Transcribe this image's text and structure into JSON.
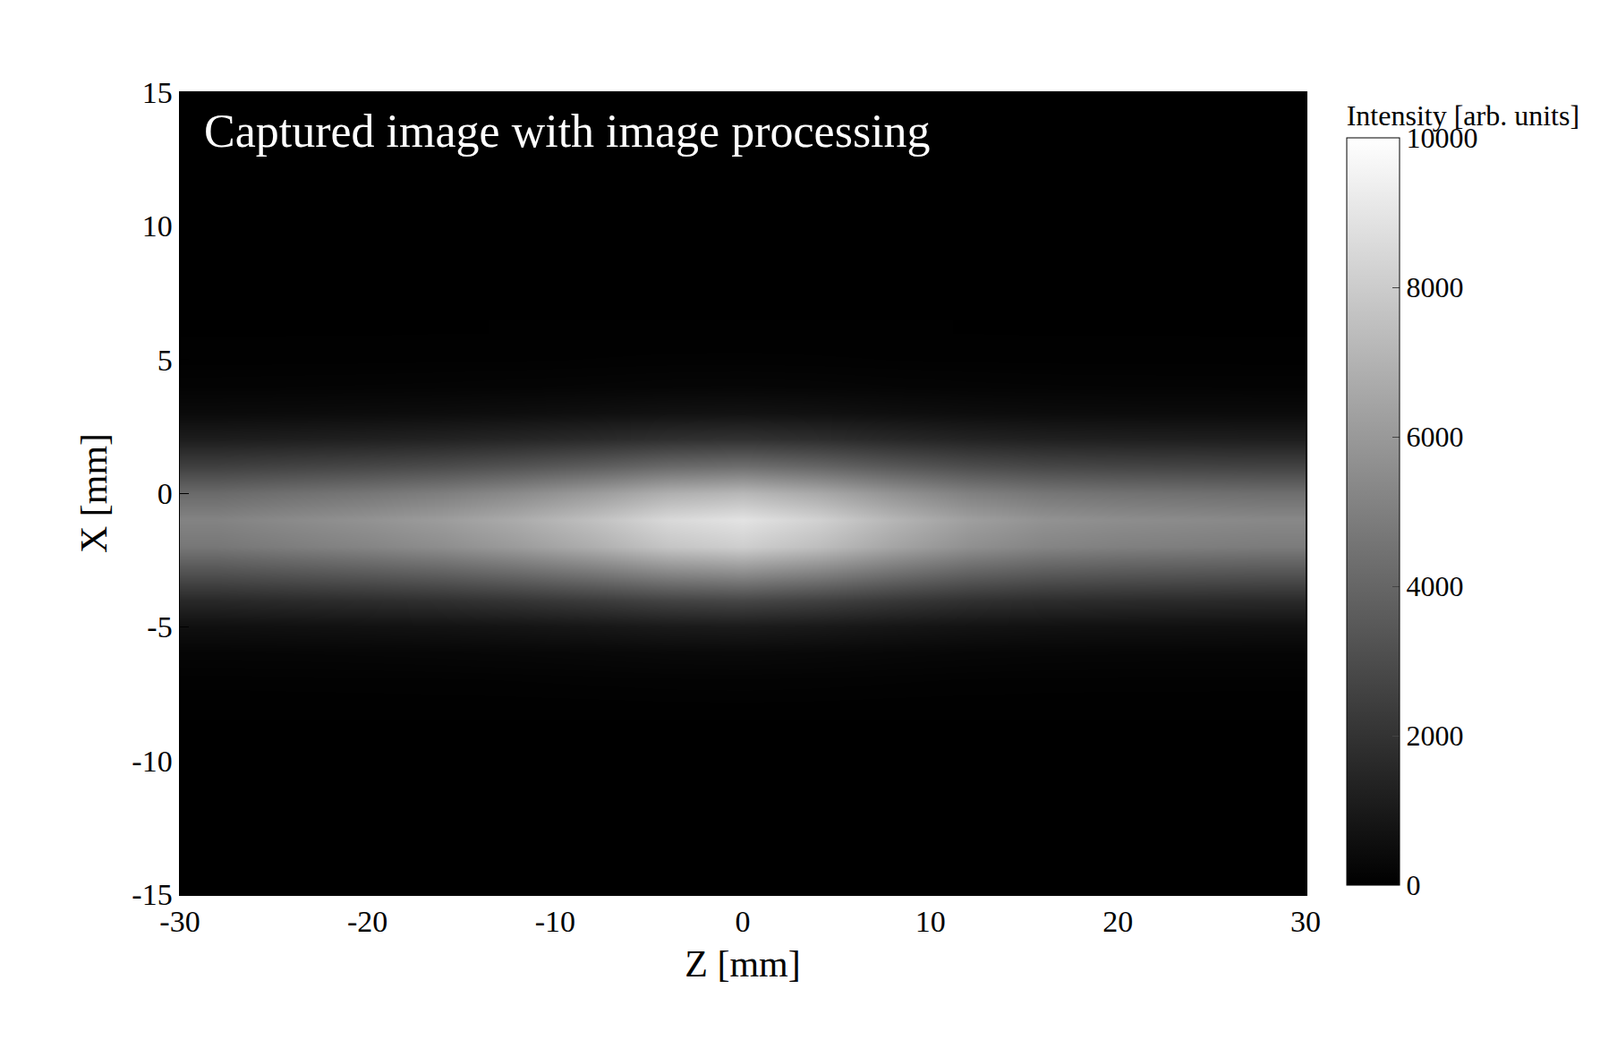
{
  "chart_data": {
    "type": "heatmap",
    "annotation": "Captured image with image processing",
    "x_label": "Z [mm]",
    "y_label": "X [mm]",
    "xlim": [
      -30,
      30
    ],
    "xticks": [
      -30,
      -20,
      -10,
      0,
      10,
      20,
      30
    ],
    "ylim": [
      -15,
      15
    ],
    "yticks": [
      -15,
      -10,
      -5,
      0,
      5,
      10,
      15
    ],
    "x": [
      -28,
      -24,
      -20,
      -16,
      -12,
      -8,
      -4,
      0,
      4,
      8,
      12,
      16,
      20,
      24,
      28
    ],
    "y": [
      -8,
      -7,
      -6,
      -5,
      -4,
      -3,
      -2,
      -1,
      0,
      1,
      2,
      3,
      4,
      5,
      6
    ],
    "cells": [
      [
        26,
        28,
        29,
        31,
        34,
        38,
        43,
        45,
        42,
        36,
        32,
        29,
        28,
        28,
        27
      ],
      [
        78,
        83,
        87,
        93,
        102,
        114,
        129,
        135,
        125,
        108,
        95,
        87,
        84,
        83,
        81
      ],
      [
        208,
        220,
        232,
        248,
        272,
        304,
        344,
        360,
        332,
        288,
        252,
        232,
        224,
        220,
        216
      ],
      [
        624,
        660,
        696,
        744,
        816,
        912,
        1032,
        1080,
        996,
        864,
        756,
        696,
        672,
        660,
        648
      ],
      [
        1612,
        1705,
        1798,
        1922,
        2108,
        2356,
        2666,
        2790,
        2573,
        2232,
        1953,
        1798,
        1736,
        1705,
        1674
      ],
      [
        3172,
        3355,
        3538,
        3782,
        4148,
        4636,
        5246,
        5490,
        5063,
        4392,
        3843,
        3538,
        3416,
        3355,
        3294
      ],
      [
        4680,
        4950,
        5220,
        5580,
        6120,
        6840,
        7740,
        8100,
        7470,
        6480,
        5670,
        5220,
        5040,
        4950,
        4860
      ],
      [
        5148,
        5445,
        5742,
        6138,
        6732,
        7524,
        8514,
        8910,
        8217,
        7128,
        6237,
        5742,
        5544,
        5445,
        5346
      ],
      [
        4160,
        4400,
        4640,
        4960,
        5440,
        6080,
        6880,
        7200,
        6640,
        5760,
        5040,
        4640,
        4480,
        4400,
        4320
      ],
      [
        2496,
        2640,
        2784,
        2976,
        3264,
        3648,
        4128,
        4320,
        3984,
        3456,
        3024,
        2784,
        2688,
        2640,
        2592
      ],
      [
        1144,
        1210,
        1276,
        1364,
        1496,
        1672,
        1892,
        1980,
        1826,
        1584,
        1386,
        1276,
        1232,
        1210,
        1188
      ],
      [
        416,
        440,
        464,
        496,
        544,
        608,
        688,
        720,
        664,
        576,
        504,
        464,
        448,
        440,
        432
      ],
      [
        130,
        138,
        145,
        155,
        170,
        190,
        215,
        225,
        208,
        180,
        158,
        145,
        140,
        138,
        135
      ],
      [
        42,
        44,
        46,
        50,
        54,
        61,
        69,
        72,
        66,
        58,
        50,
        46,
        45,
        44,
        43
      ],
      [
        16,
        17,
        17,
        19,
        20,
        23,
        26,
        27,
        25,
        22,
        19,
        17,
        17,
        17,
        16
      ]
    ],
    "colorbar_title": "Intensity [arb. units]",
    "colorbar_range": [
      0,
      10000
    ],
    "colorbar_ticks": [
      0,
      2000,
      4000,
      6000,
      8000,
      10000
    ],
    "grid": false
  }
}
